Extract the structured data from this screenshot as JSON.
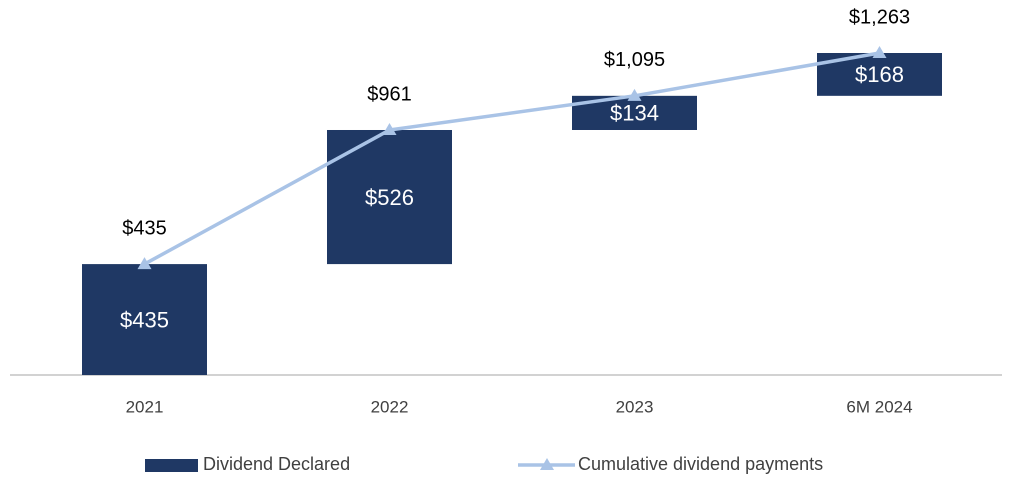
{
  "chart_data": {
    "type": "waterfall",
    "categories": [
      "2021",
      "2022",
      "2023",
      "6M 2024"
    ],
    "series": [
      {
        "name": "Dividend Declared",
        "color": "#1f3864",
        "values": [
          435,
          526,
          134,
          168
        ],
        "value_labels": [
          "$435",
          "$526",
          "$134",
          "$168"
        ]
      },
      {
        "name": "Cumulative dividend payments",
        "color": "#a9c3e6",
        "values": [
          435,
          961,
          1095,
          1263
        ],
        "value_labels": [
          "$435",
          "$961",
          "$1,095",
          "$1,263"
        ]
      }
    ],
    "legend": "bottom"
  }
}
